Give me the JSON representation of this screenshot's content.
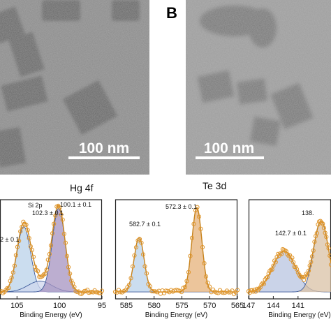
{
  "panels": {
    "b_letter": "B",
    "tem_left_scalebar": "100 nm",
    "tem_right_scalebar": "100 nm"
  },
  "chart_data": [
    {
      "type": "line",
      "title": "Hg 4f",
      "xlabel": "Binding Energy (eV)",
      "x_reversed": true,
      "xlim": [
        107,
        95
      ],
      "xticks": [
        105,
        100,
        95
      ],
      "peaks": [
        {
          "label": "2 ± 0.1",
          "center": 104.2,
          "height": 0.72,
          "width": 0.8,
          "fill": "#b9d2ea"
        },
        {
          "label": "Si 2p\n102.3 ± 0.1",
          "center": 102.3,
          "height": 0.12,
          "width": 1.4,
          "fill": "#cfd7ee"
        },
        {
          "label": "100.1 ± 0.1",
          "center": 100.1,
          "height": 0.92,
          "width": 0.75,
          "fill": "#a593c0"
        }
      ],
      "annotations": [
        "2 ± 0.1",
        "Si 2p",
        "102.3 ± 0.1",
        "100.1 ± 0.1"
      ]
    },
    {
      "type": "line",
      "title": "Te 3d",
      "xlabel": "Binding Energy (eV)",
      "x_reversed": true,
      "xlim": [
        587,
        565
      ],
      "xticks": [
        585,
        580,
        575,
        570,
        565
      ],
      "peaks": [
        {
          "label": "582.7 ± 0.1",
          "center": 582.7,
          "height": 0.6,
          "width": 0.9,
          "fill": "#b9d2ea"
        },
        {
          "label": "572.3 ± 0.1",
          "center": 572.3,
          "height": 0.93,
          "width": 0.9,
          "fill": "#e6b27a"
        }
      ],
      "annotations": [
        "582.7 ± 0.1",
        "572.3 ± 0.1"
      ]
    },
    {
      "type": "line",
      "title": "",
      "xlabel": "Binding Energy (eV)",
      "x_reversed": true,
      "xlim": [
        147,
        137
      ],
      "xticks": [
        147,
        144,
        141
      ],
      "peaks": [
        {
          "label": "142.7 ± 0.1",
          "center": 142.7,
          "height": 0.45,
          "width": 1.4,
          "fill": "#b8c4e0"
        },
        {
          "label": "138.",
          "center": 138.2,
          "height": 0.78,
          "width": 0.9,
          "fill": "#d9c2a6"
        }
      ],
      "annotations": [
        "142.7 ± 0.1",
        "138."
      ]
    }
  ],
  "colors": {
    "data_marker": "#e0962c",
    "fit_line": "#c9841c",
    "blue_fit": "#3c5a9a",
    "frame": "#222222"
  }
}
